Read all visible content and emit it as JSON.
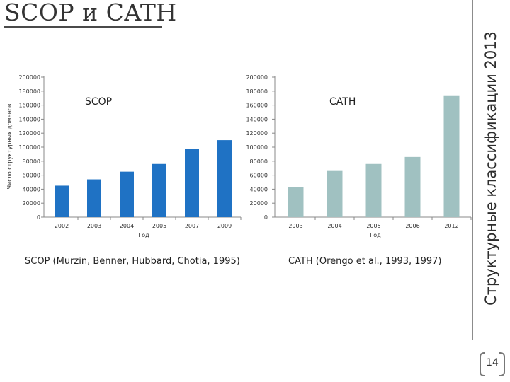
{
  "slide": {
    "title": "SCOP и CATH",
    "side_title": "Структурные классификации 2013",
    "page_number": "14",
    "captions": {
      "scop": "SCOP (Murzin, Benner, Hubbard, Chotia, 1995)",
      "cath": "CATH (Orengo et al., 1993, 1997)"
    }
  },
  "chart_data": [
    {
      "type": "bar",
      "title": "SCOP",
      "categories": [
        "2002",
        "2003",
        "2004",
        "2005",
        "2007",
        "2009"
      ],
      "values": [
        45000,
        54000,
        65000,
        76000,
        97000,
        110000
      ],
      "xlabel": "Год",
      "ylabel": "Число структурных доменов",
      "ylim": [
        0,
        200000
      ],
      "yticks": [
        "0",
        "20000",
        "40000",
        "60000",
        "80000",
        "100000",
        "120000",
        "140000",
        "160000",
        "180000",
        "200000"
      ],
      "color": "#1f72c4",
      "grid": false
    },
    {
      "type": "bar",
      "title": "CATH",
      "categories": [
        "2003",
        "2004",
        "2005",
        "2006",
        "2012"
      ],
      "values": [
        43000,
        66000,
        76000,
        86000,
        174000
      ],
      "xlabel": "Год",
      "ylabel": "",
      "ylim": [
        0,
        200000
      ],
      "yticks": [
        "0",
        "20000",
        "40000",
        "60000",
        "80000",
        "100000",
        "120000",
        "140000",
        "160000",
        "180000",
        "200000"
      ],
      "color": "#a0c1c1",
      "grid": false
    }
  ]
}
